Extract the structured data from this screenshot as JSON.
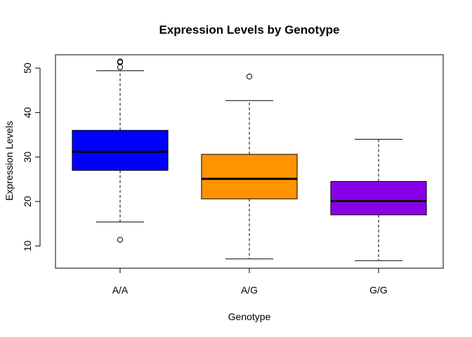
{
  "chart_data": {
    "type": "boxplot",
    "title": "Expression Levels by Genotype",
    "xlabel": "Genotype",
    "ylabel": "Expression Levels",
    "categories": [
      "A/A",
      "A/G",
      "G/G"
    ],
    "colors": [
      "#0000ff",
      "#ff9400",
      "#8a00e6"
    ],
    "ylim": [
      5,
      53
    ],
    "yticks": [
      10,
      20,
      30,
      40,
      50
    ],
    "grid": false,
    "boxes": [
      {
        "category": "A/A",
        "whisker_low": 15.4,
        "q1": 27.0,
        "median": 31.2,
        "q3": 36.0,
        "whisker_high": 49.4,
        "outliers": [
          51.5,
          51.3,
          50.2,
          11.4
        ]
      },
      {
        "category": "A/G",
        "whisker_low": 7.1,
        "q1": 20.6,
        "median": 25.1,
        "q3": 30.6,
        "whisker_high": 42.7,
        "outliers": [
          48.1
        ]
      },
      {
        "category": "G/G",
        "whisker_low": 6.7,
        "q1": 17.0,
        "median": 20.1,
        "q3": 24.5,
        "whisker_high": 34.0,
        "outliers": []
      }
    ]
  }
}
